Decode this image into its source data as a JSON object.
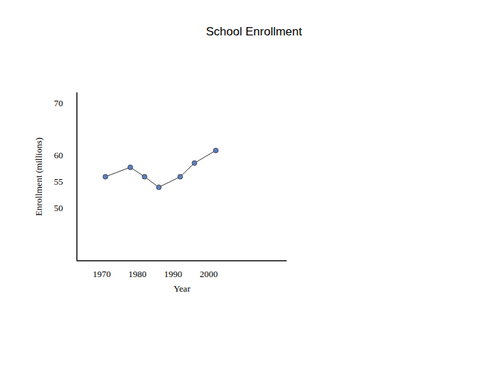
{
  "chart_data": {
    "type": "line",
    "title": "School Enrollment",
    "x_label": "Year",
    "y_label": "Enrollment (millions)",
    "x": [
      1971,
      1978,
      1982,
      1986,
      1992,
      1996,
      2002
    ],
    "values": [
      56,
      57.8,
      56,
      54,
      56,
      58.6,
      61
    ],
    "color": "#5b7fbf",
    "marker": "circle",
    "xlim": [
      1963,
      2022
    ],
    "xticks": [
      1970,
      1980,
      1990,
      2000
    ],
    "ylim": [
      40,
      72
    ],
    "yticks": [
      50,
      55,
      60,
      70
    ]
  }
}
